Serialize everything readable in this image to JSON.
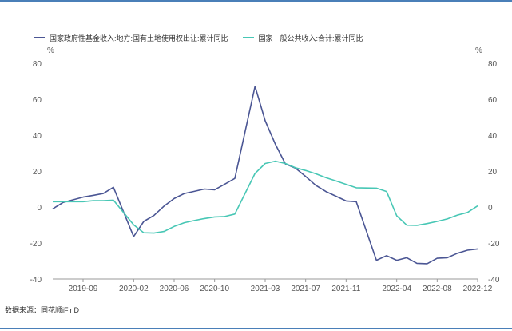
{
  "source_label": "数据来源：同花顺iFinD",
  "chart_data": {
    "type": "line",
    "title": "",
    "x_tick_labels": [
      "2019-09",
      "2020-02",
      "2020-06",
      "2020-10",
      "2021-03",
      "2021-07",
      "2021-11",
      "2022-04",
      "2022-08",
      "2022-12"
    ],
    "y_unit_left": "%",
    "y_unit_right": "%",
    "ylim": [
      -40,
      80
    ],
    "y_ticks": [
      -40,
      -20,
      0,
      20,
      40,
      60,
      80
    ],
    "legend_position": "top-left",
    "grid": false,
    "x": [
      "2019-06",
      "2019-07",
      "2019-08",
      "2019-09",
      "2019-10",
      "2019-11",
      "2019-12",
      "2020-02",
      "2020-03",
      "2020-04",
      "2020-05",
      "2020-06",
      "2020-07",
      "2020-08",
      "2020-09",
      "2020-10",
      "2020-11",
      "2020-12",
      "2021-02",
      "2021-03",
      "2021-04",
      "2021-05",
      "2021-06",
      "2021-07",
      "2021-08",
      "2021-09",
      "2021-10",
      "2021-11",
      "2021-12",
      "2022-02",
      "2022-03",
      "2022-04",
      "2022-05",
      "2022-06",
      "2022-07",
      "2022-08",
      "2022-09",
      "2022-10",
      "2022-11",
      "2022-12"
    ],
    "series": [
      {
        "name": "国家政府性基金收入:地方:国有土地使用权出让:累计同比",
        "color": "#4b5694",
        "values": [
          -1,
          2.5,
          4,
          5.5,
          6.5,
          7.5,
          11,
          -16.4,
          -8,
          -4.7,
          0.5,
          4.7,
          7.5,
          8.7,
          10,
          9.6,
          12.7,
          15.9,
          67.2,
          48,
          35,
          24,
          21.6,
          17,
          12.1,
          8.6,
          6,
          3.4,
          3,
          -29.6,
          -27,
          -29.6,
          -28.2,
          -31.3,
          -31.5,
          -28.5,
          -28.2,
          -25.7,
          -24,
          -23.3
        ]
      },
      {
        "name": "国家一般公共收入:合计:累计同比",
        "color": "#48c7b5",
        "values": [
          3,
          3,
          3,
          3,
          3.5,
          3.5,
          3.8,
          -9.9,
          -14.3,
          -14.5,
          -13.6,
          -10.8,
          -8.7,
          -7.5,
          -6.4,
          -5.5,
          -5.3,
          -3.9,
          18.7,
          24.2,
          25.5,
          24.2,
          21.8,
          20.3,
          18.5,
          16.3,
          14.5,
          12.6,
          10.7,
          10.5,
          8.6,
          -4.9,
          -10.1,
          -10.2,
          -9.2,
          -8,
          -6.6,
          -4.5,
          -3,
          0.6
        ]
      }
    ]
  }
}
